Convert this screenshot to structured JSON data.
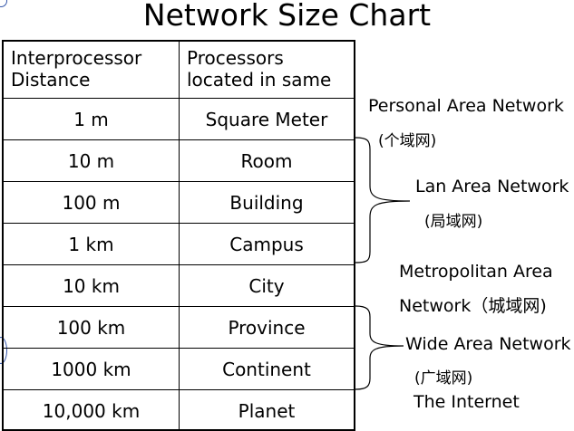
{
  "title": "Network Size Chart",
  "table": {
    "header": [
      "Interprocessor Distance",
      "Processors located in same"
    ],
    "rows": [
      {
        "distance": "1 m",
        "location": "Square Meter"
      },
      {
        "distance": "10 m",
        "location": "Room"
      },
      {
        "distance": "100 m",
        "location": "Building"
      },
      {
        "distance": "1 km",
        "location": "Campus"
      },
      {
        "distance": "10 km",
        "location": "City"
      },
      {
        "distance": "100 km",
        "location": "Province"
      },
      {
        "distance": "1000 km",
        "location": "Continent"
      },
      {
        "distance": "10,000 km",
        "location": "Planet"
      }
    ]
  },
  "annotations": {
    "pan": "Personal Area Network",
    "pan_cn": "(个域网)",
    "lan": "Lan Area Network",
    "lan_cn": "(局域网)",
    "man_line1": "Metropolitan Area",
    "man_line2": "Network（城域网)",
    "wan": "Wide Area Network",
    "wan_cn": "(广域网)",
    "internet": "The Internet"
  }
}
